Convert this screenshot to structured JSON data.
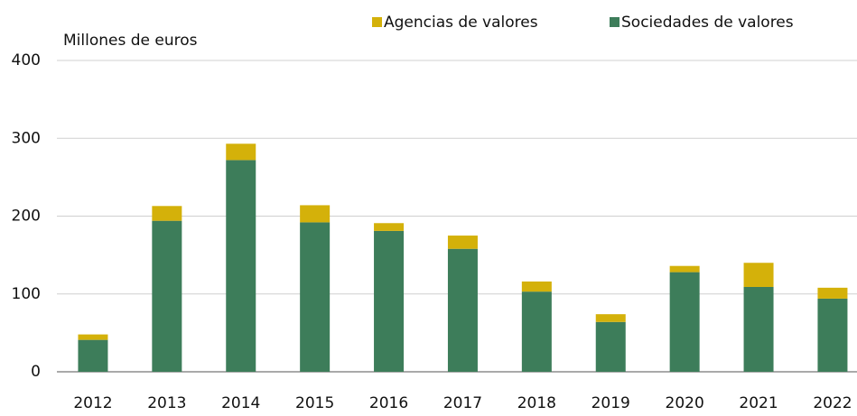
{
  "chart_data": {
    "type": "stacked_bar",
    "y_label": "Millones de euros",
    "categories": [
      "2012",
      "2013",
      "2014",
      "2015",
      "2016",
      "2017",
      "2018",
      "2019",
      "2020",
      "2021",
      "2022"
    ],
    "series": [
      {
        "name": "Sociedades de valores",
        "color": "#3d7d5a",
        "values": [
          41,
          194,
          272,
          192,
          181,
          158,
          103,
          64,
          128,
          109,
          94
        ]
      },
      {
        "name": "Agencias de valores",
        "color": "#d4b10a",
        "values": [
          7,
          19,
          21,
          22,
          10,
          17,
          13,
          10,
          8,
          31,
          14
        ]
      }
    ],
    "ylim": [
      0,
      400
    ],
    "yticks": [
      0,
      100,
      200,
      300,
      400
    ],
    "grid": true
  }
}
